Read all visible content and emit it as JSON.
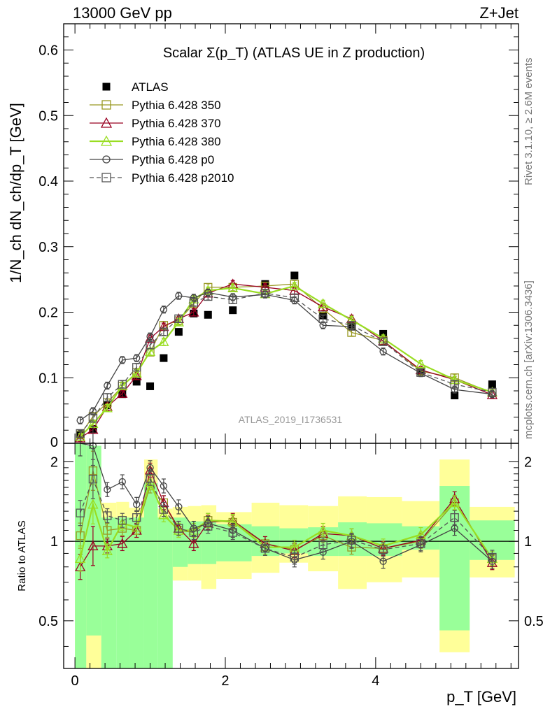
{
  "header": {
    "left": "13000 GeV pp",
    "right": "Z+Jet"
  },
  "side_labels": {
    "rivet": "Rivet 3.1.10, ≥ 2.6M events",
    "mcplots": "mcplots.cern.ch [arXiv:1306.3436]"
  },
  "colors": {
    "band_inner": "#99ff99",
    "band_outer": "#ffff99",
    "atlas": "#000000",
    "p350": "#999922",
    "p370": "#990022",
    "p380": "#99dd22",
    "p0": "#444444",
    "p2010": "#555555"
  },
  "chart_data": [
    {
      "type": "line",
      "title": "Scalar Σ(p_T) (ATLAS UE in Z production)",
      "ylabel": "1/N_ch dN_ch/dp_T [GeV]",
      "xlim": [
        -0.15,
        5.9
      ],
      "ylim": [
        0,
        0.64
      ],
      "yticks": [
        0.1,
        0.2,
        0.3,
        0.4,
        0.5,
        0.6
      ],
      "ytick_labels": [
        "0.1",
        "0.2",
        "0.3",
        "0.4",
        "0.5",
        "0.6"
      ],
      "y_zero_label": "0",
      "legend_position": "top-left",
      "watermark": "ATLAS_2019_I1736531",
      "x": [
        0.07,
        0.24,
        0.43,
        0.63,
        0.82,
        1.0,
        1.18,
        1.38,
        1.58,
        1.77,
        2.1,
        2.53,
        2.92,
        3.3,
        3.68,
        4.1,
        4.6,
        5.05,
        5.55
      ],
      "series": [
        {
          "name": "ATLAS",
          "marker": "square-filled",
          "color": "#000000",
          "values": [
            0.012,
            0.022,
            0.058,
            0.075,
            0.094,
            0.087,
            0.13,
            0.17,
            0.198,
            0.196,
            0.203,
            0.243,
            0.256,
            0.195,
            0.178,
            0.167,
            0.11,
            0.073,
            0.09
          ]
        },
        {
          "name": "Pythia 6.428 350",
          "marker": "square-open",
          "color": "#999922",
          "dash": "",
          "values": [
            0.013,
            0.041,
            0.062,
            0.087,
            0.108,
            0.139,
            0.18,
            0.187,
            0.213,
            0.238,
            0.238,
            0.24,
            0.243,
            0.205,
            0.169,
            0.157,
            0.11,
            0.1,
            0.077
          ]
        },
        {
          "name": "Pythia 6.428 370",
          "marker": "triangle-open",
          "color": "#990022",
          "dash": "",
          "values": [
            0.008,
            0.021,
            0.056,
            0.076,
            0.103,
            0.16,
            0.178,
            0.19,
            0.2,
            0.229,
            0.243,
            0.238,
            0.233,
            0.208,
            0.19,
            0.156,
            0.112,
            0.097,
            0.074
          ]
        },
        {
          "name": "Pythia 6.428 380",
          "marker": "triangle-open",
          "color": "#99dd22",
          "dash": "",
          "values": [
            0.01,
            0.03,
            0.054,
            0.088,
            0.107,
            0.14,
            0.155,
            0.185,
            0.22,
            0.233,
            0.237,
            0.228,
            0.24,
            0.213,
            0.188,
            0.16,
            0.121,
            0.097,
            0.078
          ]
        },
        {
          "name": "Pythia 6.428 p0",
          "marker": "circle-open",
          "color": "#444444",
          "dash": "",
          "values": [
            0.035,
            0.049,
            0.088,
            0.127,
            0.13,
            0.163,
            0.204,
            0.225,
            0.222,
            0.23,
            0.223,
            0.227,
            0.218,
            0.18,
            0.178,
            0.14,
            0.107,
            0.082,
            0.075
          ]
        },
        {
          "name": "Pythia 6.428 p2010",
          "marker": "square-open",
          "color": "#555555",
          "dash": "6,4",
          "values": [
            0.015,
            0.038,
            0.07,
            0.09,
            0.116,
            0.15,
            0.17,
            0.19,
            0.215,
            0.224,
            0.219,
            0.229,
            0.222,
            0.19,
            0.18,
            0.155,
            0.108,
            0.09,
            0.078
          ]
        }
      ]
    },
    {
      "type": "line",
      "ylabel": "Ratio to ATLAS",
      "xlabel": "p_T [GeV]",
      "xlim": [
        -0.15,
        5.9
      ],
      "ylim": [
        0.33,
        2.35
      ],
      "xticks": [
        0,
        2,
        4
      ],
      "xtick_labels": [
        "0",
        "2",
        "4"
      ],
      "yticks": [
        0.5,
        1,
        2
      ],
      "ytick_labels": [
        "0.5",
        "1",
        "2"
      ],
      "bands": {
        "edges": [
          0.0,
          0.15,
          0.35,
          0.55,
          0.72,
          0.92,
          1.1,
          1.3,
          1.5,
          1.68,
          1.88,
          2.35,
          2.72,
          3.1,
          3.5,
          3.88,
          4.35,
          4.85,
          5.25,
          5.85
        ],
        "inner_lo": [
          0.3,
          0.44,
          0.33,
          0.33,
          0.33,
          0.33,
          0.33,
          0.8,
          0.82,
          0.82,
          0.84,
          0.88,
          0.9,
          0.88,
          0.88,
          0.88,
          0.93,
          0.46,
          0.85
        ],
        "inner_hi": [
          2.4,
          2.3,
          1.23,
          1.23,
          1.23,
          1.66,
          1.23,
          1.23,
          1.19,
          1.19,
          1.16,
          1.14,
          1.12,
          1.13,
          1.18,
          1.17,
          1.14,
          1.62,
          1.2
        ],
        "outer_lo": [
          0.3,
          0.3,
          0.77,
          0.78,
          0.72,
          0.62,
          0.72,
          0.71,
          0.71,
          0.66,
          0.72,
          0.76,
          0.83,
          0.77,
          0.66,
          0.7,
          0.73,
          0.38,
          0.73
        ],
        "outer_hi": [
          2.4,
          2.3,
          1.4,
          1.41,
          1.34,
          2.04,
          1.33,
          1.35,
          1.36,
          1.37,
          1.29,
          1.4,
          1.37,
          1.36,
          1.48,
          1.47,
          1.42,
          2.04,
          1.35
        ]
      },
      "x": [
        0.07,
        0.24,
        0.43,
        0.63,
        0.82,
        1.0,
        1.18,
        1.38,
        1.58,
        1.77,
        2.1,
        2.53,
        2.92,
        3.3,
        3.68,
        4.1,
        4.6,
        5.05,
        5.55
      ],
      "series": [
        {
          "name": "Pythia 6.428 350",
          "marker": "square-open",
          "color": "#999922",
          "dash": "",
          "values": [
            1.05,
            1.85,
            1.1,
            1.12,
            1.1,
            1.62,
            1.4,
            1.1,
            1.08,
            1.2,
            1.18,
            0.98,
            0.93,
            1.05,
            0.95,
            0.94,
            1.0,
            1.4,
            0.86
          ]
        },
        {
          "name": "Pythia 6.428 370",
          "marker": "triangle-open",
          "color": "#990022",
          "dash": "",
          "values": [
            0.8,
            0.96,
            0.96,
            0.98,
            1.1,
            1.86,
            1.4,
            1.12,
            0.98,
            1.18,
            1.2,
            0.98,
            0.92,
            1.07,
            1.05,
            0.94,
            1.01,
            1.45,
            0.83
          ]
        },
        {
          "name": "Pythia 6.428 380",
          "marker": "triangle-open",
          "color": "#99dd22",
          "dash": "",
          "values": [
            0.86,
            1.38,
            0.92,
            1.17,
            1.13,
            1.67,
            1.26,
            1.1,
            1.1,
            1.2,
            1.19,
            0.95,
            0.95,
            1.1,
            1.05,
            0.96,
            1.06,
            1.4,
            0.86
          ]
        },
        {
          "name": "Pythia 6.428 p0",
          "marker": "circle-open",
          "color": "#444444",
          "dash": "",
          "values": [
            2.92,
            2.3,
            1.57,
            1.68,
            1.38,
            1.9,
            1.62,
            1.35,
            1.12,
            1.17,
            1.1,
            0.94,
            0.85,
            0.91,
            1.0,
            0.84,
            0.97,
            1.12,
            0.84
          ]
        },
        {
          "name": "Pythia 6.428 p2010",
          "marker": "square-open",
          "color": "#555555",
          "dash": "6,4",
          "values": [
            1.28,
            1.72,
            1.25,
            1.2,
            1.23,
            1.73,
            1.32,
            1.12,
            1.08,
            1.14,
            1.08,
            0.94,
            0.87,
            0.97,
            1.01,
            0.93,
            0.98,
            1.23,
            0.87
          ]
        }
      ]
    }
  ]
}
